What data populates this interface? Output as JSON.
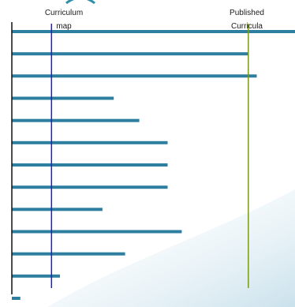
{
  "chart_data": {
    "type": "bar",
    "orientation": "horizontal",
    "values": [
      100,
      83.5,
      86.5,
      36,
      45,
      55,
      55,
      55,
      32,
      60,
      40,
      17,
      3
    ],
    "reference_lines": [
      {
        "label": "Curriculum map",
        "value": 14,
        "color": "#1f1fd0"
      },
      {
        "label": "Published Curricula",
        "value": 83.5,
        "color": "#7a9a1a"
      }
    ],
    "xlim": [
      0,
      100
    ],
    "grid": false,
    "bar_color": "#2e7ea0"
  },
  "labels": {
    "curriculum_map_line1": "Curriculum",
    "curriculum_map_line2": "map",
    "published_line1": "Published",
    "published_line2": "Curricula"
  },
  "colors": {
    "header_teal": "#2e8fa8",
    "axis": "#111111"
  }
}
